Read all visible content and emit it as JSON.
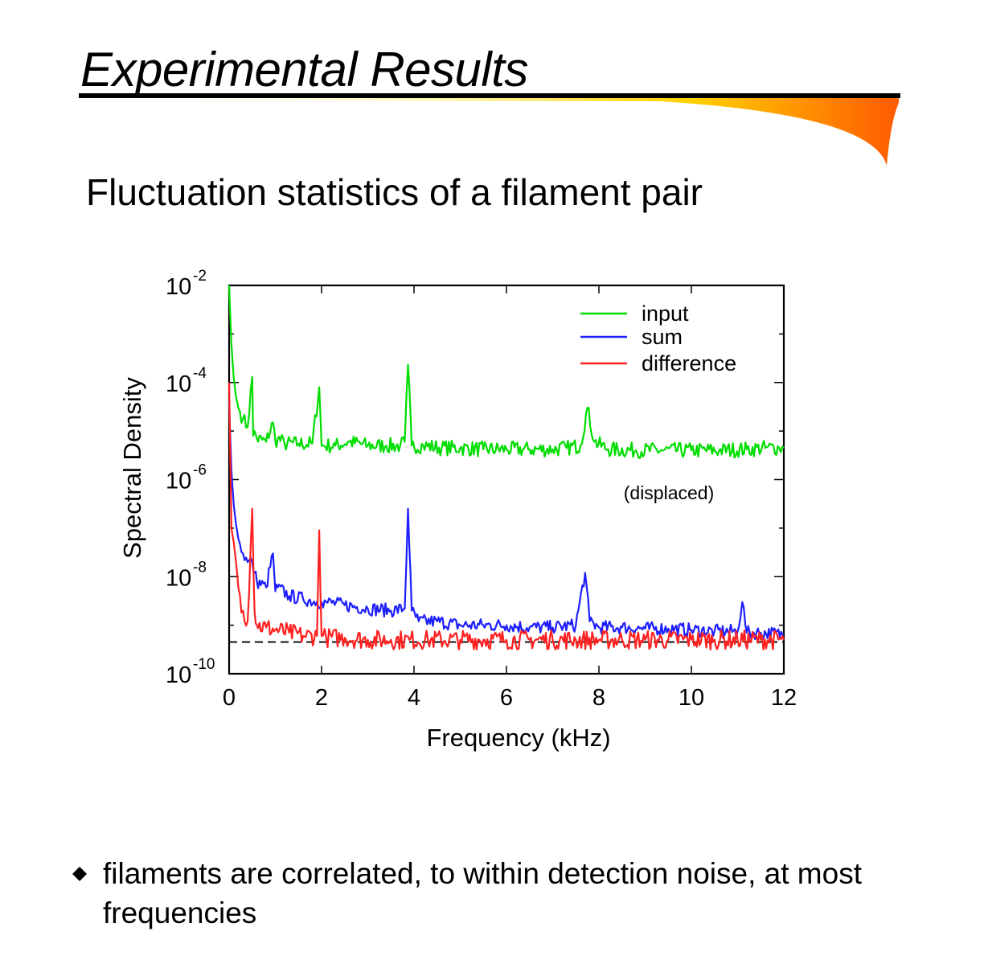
{
  "slide": {
    "title": "Experimental Results",
    "subtitle": "Fluctuation statistics of a filament pair",
    "bullets": [
      "filaments are correlated, to within detection noise, at most frequencies"
    ]
  },
  "colors": {
    "input": "#00dd00",
    "sum": "#1e1eff",
    "difference": "#ff2020",
    "rule_gradient": [
      "#ffe400",
      "#ff5a00"
    ]
  },
  "chart_data": {
    "type": "line",
    "title": "",
    "xlabel": "Frequency (kHz)",
    "ylabel": "Spectral Density",
    "xlim": [
      0,
      12
    ],
    "ylim": [
      1e-10,
      0.01
    ],
    "y_scale": "log",
    "x_ticks": [
      "0",
      "2",
      "4",
      "6",
      "8",
      "10",
      "12"
    ],
    "y_ticks": [
      {
        "base": "10",
        "exp": "-10"
      },
      {
        "base": "10",
        "exp": "-8"
      },
      {
        "base": "10",
        "exp": "-6"
      },
      {
        "base": "10",
        "exp": "-4"
      },
      {
        "base": "10",
        "exp": "-2"
      }
    ],
    "legend": {
      "position": "top-right",
      "entries": [
        "input",
        "sum",
        "difference"
      ]
    },
    "annotations": [
      {
        "text": "(displaced)",
        "x": 9.6,
        "y": 1.6e-06
      }
    ],
    "reference_line": {
      "style": "dashed",
      "y": 4.5e-10
    },
    "series": [
      {
        "name": "input",
        "x": [
          0,
          0.05,
          0.1,
          0.15,
          0.2,
          0.3,
          0.4,
          0.5,
          0.52,
          0.55,
          0.6,
          0.8,
          0.95,
          1.0,
          1.05,
          1.2,
          1.5,
          1.8,
          1.95,
          2.0,
          2.05,
          2.3,
          2.6,
          3.0,
          3.4,
          3.7,
          3.8,
          3.87,
          3.95,
          4.2,
          4.6,
          5.0,
          5.5,
          6.0,
          6.5,
          7.0,
          7.3,
          7.6,
          7.75,
          7.9,
          8.2,
          8.8,
          9.4,
          10.0,
          10.6,
          11.2,
          11.6,
          11.9,
          12.0
        ],
        "y": [
          0.01,
          0.0006,
          0.00012,
          5e-05,
          3e-05,
          1.8e-05,
          1.2e-05,
          0.00013,
          8e-06,
          1e-05,
          7e-06,
          6e-06,
          1.5e-05,
          6e-06,
          7e-06,
          5.5e-06,
          5.5e-06,
          5.5e-06,
          8e-05,
          5e-06,
          5e-06,
          5e-06,
          6e-06,
          5e-06,
          5e-06,
          5e-06,
          6e-06,
          0.00023,
          5e-06,
          5e-06,
          4.5e-06,
          4.5e-06,
          4.2e-06,
          4.2e-06,
          4.2e-06,
          4.2e-06,
          4.5e-06,
          5e-06,
          3e-05,
          6e-06,
          4.2e-06,
          4e-06,
          4e-06,
          4e-06,
          4e-06,
          4.2e-06,
          4.5e-06,
          4.5e-06,
          4.5e-06
        ]
      },
      {
        "name": "sum",
        "x": [
          0,
          0.05,
          0.1,
          0.15,
          0.2,
          0.3,
          0.4,
          0.5,
          0.55,
          0.6,
          0.8,
          0.95,
          1.0,
          1.05,
          1.3,
          1.6,
          1.9,
          2.0,
          2.1,
          2.5,
          3.0,
          3.5,
          3.8,
          3.87,
          3.95,
          4.1,
          4.5,
          5.0,
          5.5,
          6.0,
          6.5,
          7.0,
          7.5,
          7.7,
          7.8,
          8.0,
          8.5,
          9.0,
          9.5,
          10.0,
          10.5,
          11.0,
          11.1,
          11.2,
          11.5,
          12.0
        ],
        "y": [
          4e-05,
          1.5e-06,
          3e-07,
          1.2e-07,
          6e-08,
          3e-08,
          2e-08,
          2e-08,
          1.2e-08,
          8e-09,
          6e-09,
          3e-08,
          5e-09,
          6e-09,
          4e-09,
          3.5e-09,
          3e-09,
          3e-09,
          3e-09,
          2.6e-09,
          2.2e-09,
          2e-09,
          2.2e-09,
          2.5e-07,
          2e-09,
          1.2e-09,
          1.2e-09,
          1e-09,
          1e-09,
          1e-09,
          9e-10,
          9e-10,
          1e-09,
          1.2e-08,
          1.2e-09,
          9e-10,
          9e-10,
          8.5e-10,
          8.5e-10,
          8e-10,
          7.5e-10,
          7.5e-10,
          3e-09,
          7e-10,
          7e-10,
          6.5e-10
        ]
      },
      {
        "name": "difference",
        "x": [
          0,
          0.05,
          0.1,
          0.15,
          0.2,
          0.3,
          0.4,
          0.5,
          0.55,
          0.6,
          0.8,
          1.0,
          1.3,
          1.6,
          1.9,
          1.95,
          2.0,
          2.1,
          2.5,
          3.0,
          3.5,
          3.9,
          4.3,
          5.0,
          5.5,
          6.0,
          6.5,
          7.0,
          7.5,
          8.0,
          8.5,
          9.0,
          9.5,
          10.0,
          10.5,
          11.0,
          11.5,
          12.0
        ],
        "y": [
          0.0001,
          1e-07,
          5e-08,
          2e-08,
          6e-09,
          2e-09,
          1.2e-09,
          2.5e-07,
          2e-09,
          1e-09,
          9e-10,
          8e-10,
          7e-10,
          6e-10,
          6e-10,
          9e-08,
          6e-10,
          5.5e-10,
          5.5e-10,
          5e-10,
          5e-10,
          5e-10,
          5e-10,
          5e-10,
          5e-10,
          5e-10,
          5e-10,
          5e-10,
          5e-10,
          5e-10,
          5e-10,
          5e-10,
          5e-10,
          5e-10,
          5e-10,
          5e-10,
          5e-10,
          5e-10
        ]
      }
    ]
  }
}
